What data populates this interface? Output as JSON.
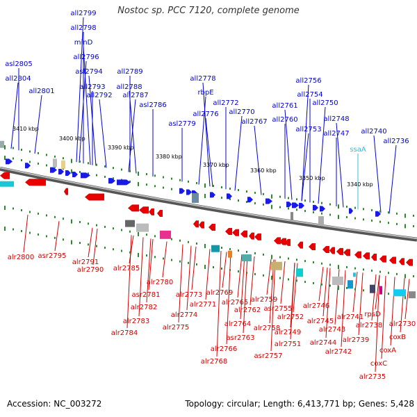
{
  "title": "Nostoc sp. PCC 7120, complete genome",
  "footer": {
    "accession": "Accession: NC_003272",
    "summary": "Topology: circular; Length: 6,413,771 bp; Genes: 5,428"
  },
  "colors": {
    "upper_label": "#0000cc",
    "lower_label": "#cc0000",
    "highlight_label": "#33bbdd",
    "forward_gene": "#1a1ae6",
    "reverse_gene": "#e60000",
    "backbone": "#808080",
    "tick": "#2a8a2a"
  },
  "scale_ticks": [
    "3410 kbp",
    "3400 kbp",
    "3390 kbp",
    "3380 kbp",
    "3370 kbp",
    "3360 kbp",
    "3350 kbp",
    "3340 kbp"
  ],
  "upper_labels": [
    "all2799",
    "all2798",
    "minD",
    "all2796",
    "asl2805",
    "asl2794",
    "all2804",
    "all2793",
    "all2792",
    "all2801",
    "all2789",
    "all2788",
    "all2787",
    "asl2786",
    "all2778",
    "rbpE",
    "all2772",
    "all2776",
    "all2770",
    "asl2779",
    "all2767",
    "all2756",
    "all2754",
    "all2761",
    "all2750",
    "all2760",
    "all2748",
    "all2753",
    "all2747",
    "all2740",
    "all2736",
    "ssaA"
  ],
  "lower_labels": [
    "alr2800",
    "asr2795",
    "alr2791",
    "alr2790",
    "alr2785",
    "alr2780",
    "asr2781",
    "alr2782",
    "alr2783",
    "alr2784",
    "alr2773",
    "alr2771",
    "alr2774",
    "alr2775",
    "alr2769",
    "alr2765",
    "alr2762",
    "alr2764",
    "asr2763",
    "alr2766",
    "alr2768",
    "alr2759",
    "asr2755",
    "alr2758",
    "alr2752",
    "alr2749",
    "alr2751",
    "asr2757",
    "alr2746",
    "alr2745",
    "alr2743",
    "alr2744",
    "alr2742",
    "alr2741",
    "alr2739",
    "rpsD",
    "alr2738",
    "alr2730",
    "coxB",
    "coxA",
    "coxC",
    "alr2735"
  ]
}
